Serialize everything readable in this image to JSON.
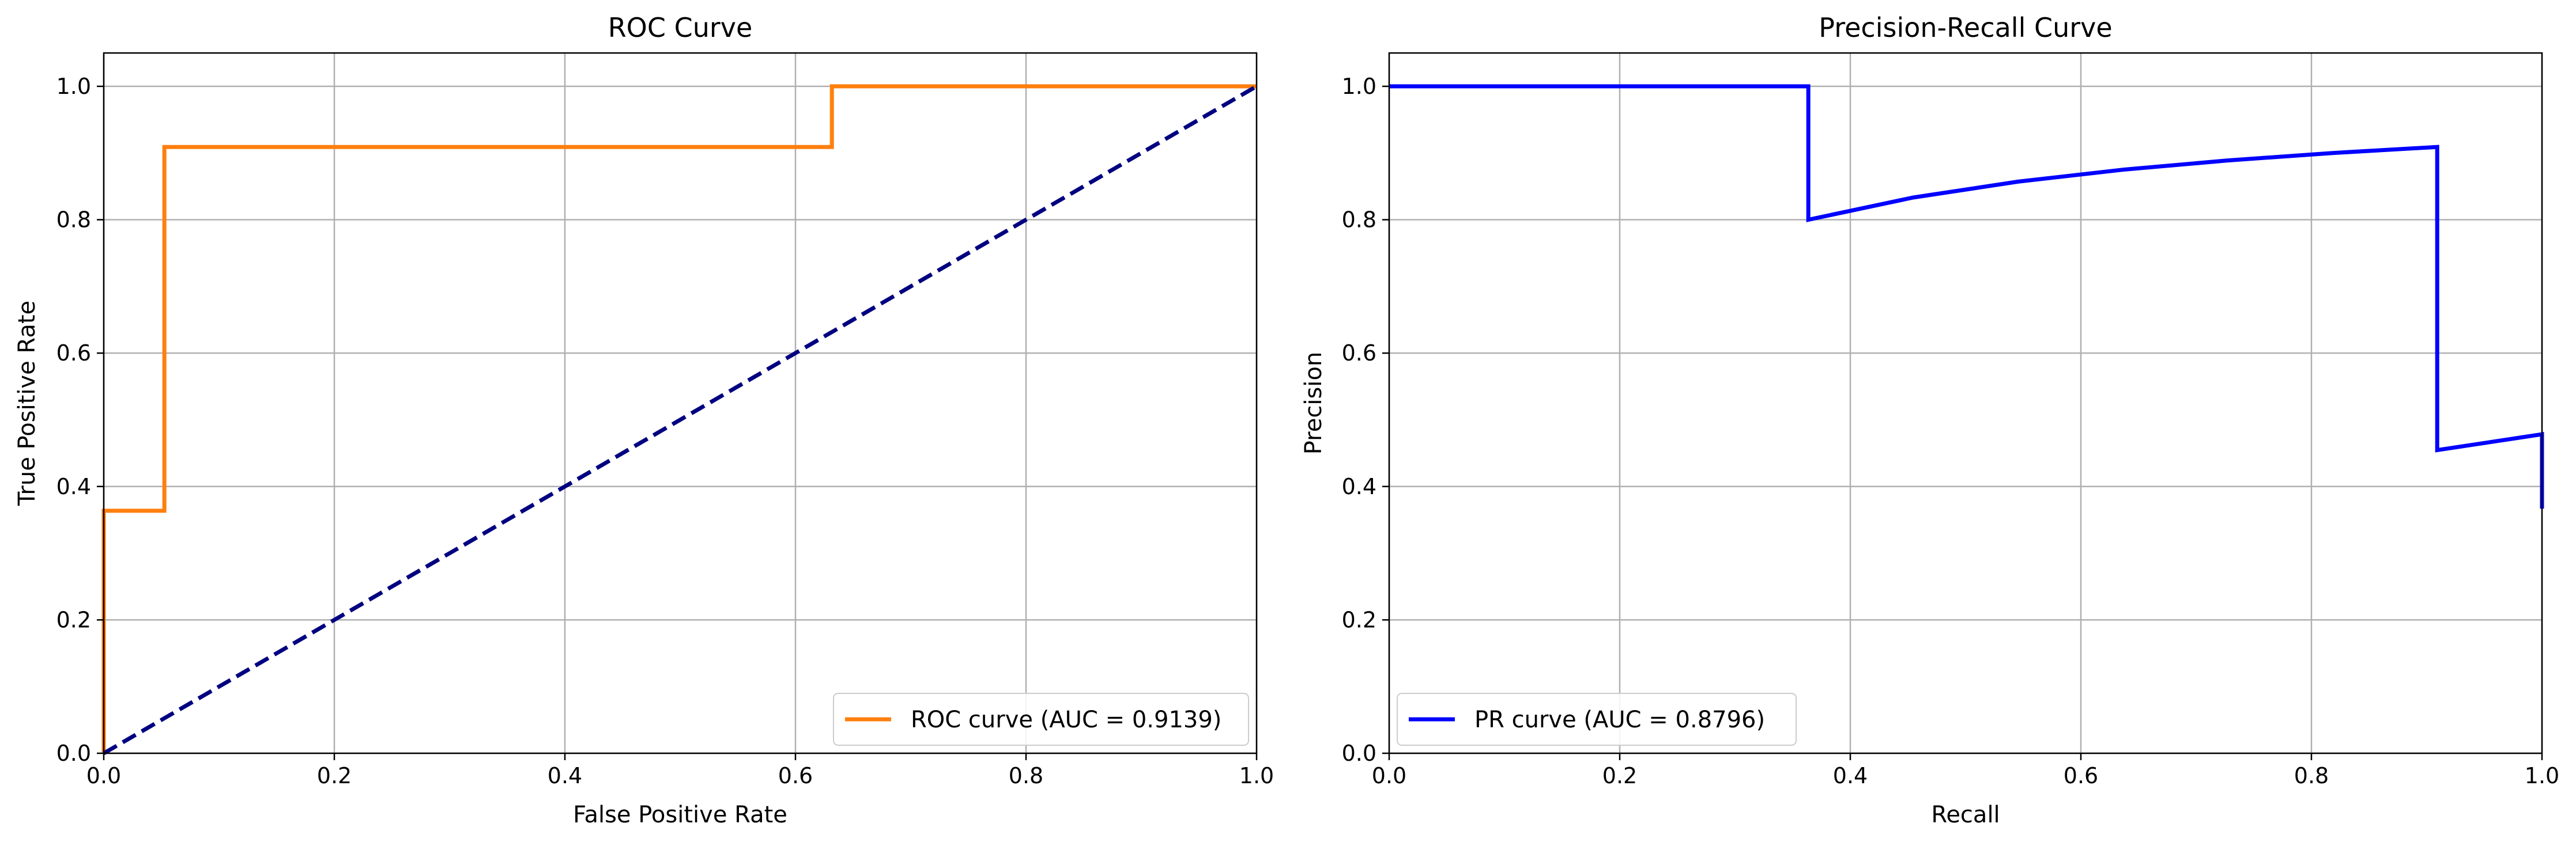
{
  "chart_data": [
    {
      "type": "line",
      "title": "ROC Curve",
      "xlabel": "False Positive Rate",
      "ylabel": "True Positive Rate",
      "xlim": [
        0,
        1
      ],
      "ylim": [
        0,
        1.05
      ],
      "xticks": [
        0.0,
        0.2,
        0.4,
        0.6,
        0.8,
        1.0
      ],
      "yticks": [
        0.0,
        0.2,
        0.4,
        0.6,
        0.8,
        1.0
      ],
      "xtick_labels": [
        "0.0",
        "0.2",
        "0.4",
        "0.6",
        "0.8",
        "1.0"
      ],
      "ytick_labels": [
        "0.0",
        "0.2",
        "0.4",
        "0.6",
        "0.8",
        "1.0"
      ],
      "grid": true,
      "legend_position": "lower-right",
      "series": [
        {
          "name": "ROC curve (AUC = 0.9139)",
          "color": "#ff7f0e",
          "style": "solid",
          "in_legend": true,
          "x": [
            0.0,
            0.0,
            0.0526,
            0.0526,
            0.6316,
            0.6316,
            1.0
          ],
          "y": [
            0.0,
            0.3636,
            0.3636,
            0.9091,
            0.9091,
            1.0,
            1.0
          ]
        },
        {
          "name": "",
          "color": "#000080",
          "style": "dashed",
          "in_legend": false,
          "x": [
            0.0,
            1.0
          ],
          "y": [
            0.0,
            1.0
          ]
        }
      ]
    },
    {
      "type": "line",
      "title": "Precision-Recall Curve",
      "xlabel": "Recall",
      "ylabel": "Precision",
      "xlim": [
        0,
        1
      ],
      "ylim": [
        0,
        1.05
      ],
      "xticks": [
        0.0,
        0.2,
        0.4,
        0.6,
        0.8,
        1.0
      ],
      "yticks": [
        0.0,
        0.2,
        0.4,
        0.6,
        0.8,
        1.0
      ],
      "xtick_labels": [
        "0.0",
        "0.2",
        "0.4",
        "0.6",
        "0.8",
        "1.0"
      ],
      "ytick_labels": [
        "0.0",
        "0.2",
        "0.4",
        "0.6",
        "0.8",
        "1.0"
      ],
      "grid": true,
      "legend_position": "lower-left",
      "series": [
        {
          "name": "PR curve (AUC = 0.8796)",
          "color": "#0000ff",
          "style": "solid",
          "in_legend": true,
          "x": [
            0.0,
            0.3636,
            0.3636,
            0.4545,
            0.5455,
            0.6364,
            0.7273,
            0.8182,
            0.9091,
            0.9091,
            1.0,
            1.0
          ],
          "y": [
            1.0,
            1.0,
            0.8,
            0.8333,
            0.8571,
            0.875,
            0.8889,
            0.9,
            0.9091,
            0.4545,
            0.4783,
            0.3667
          ]
        }
      ]
    }
  ]
}
